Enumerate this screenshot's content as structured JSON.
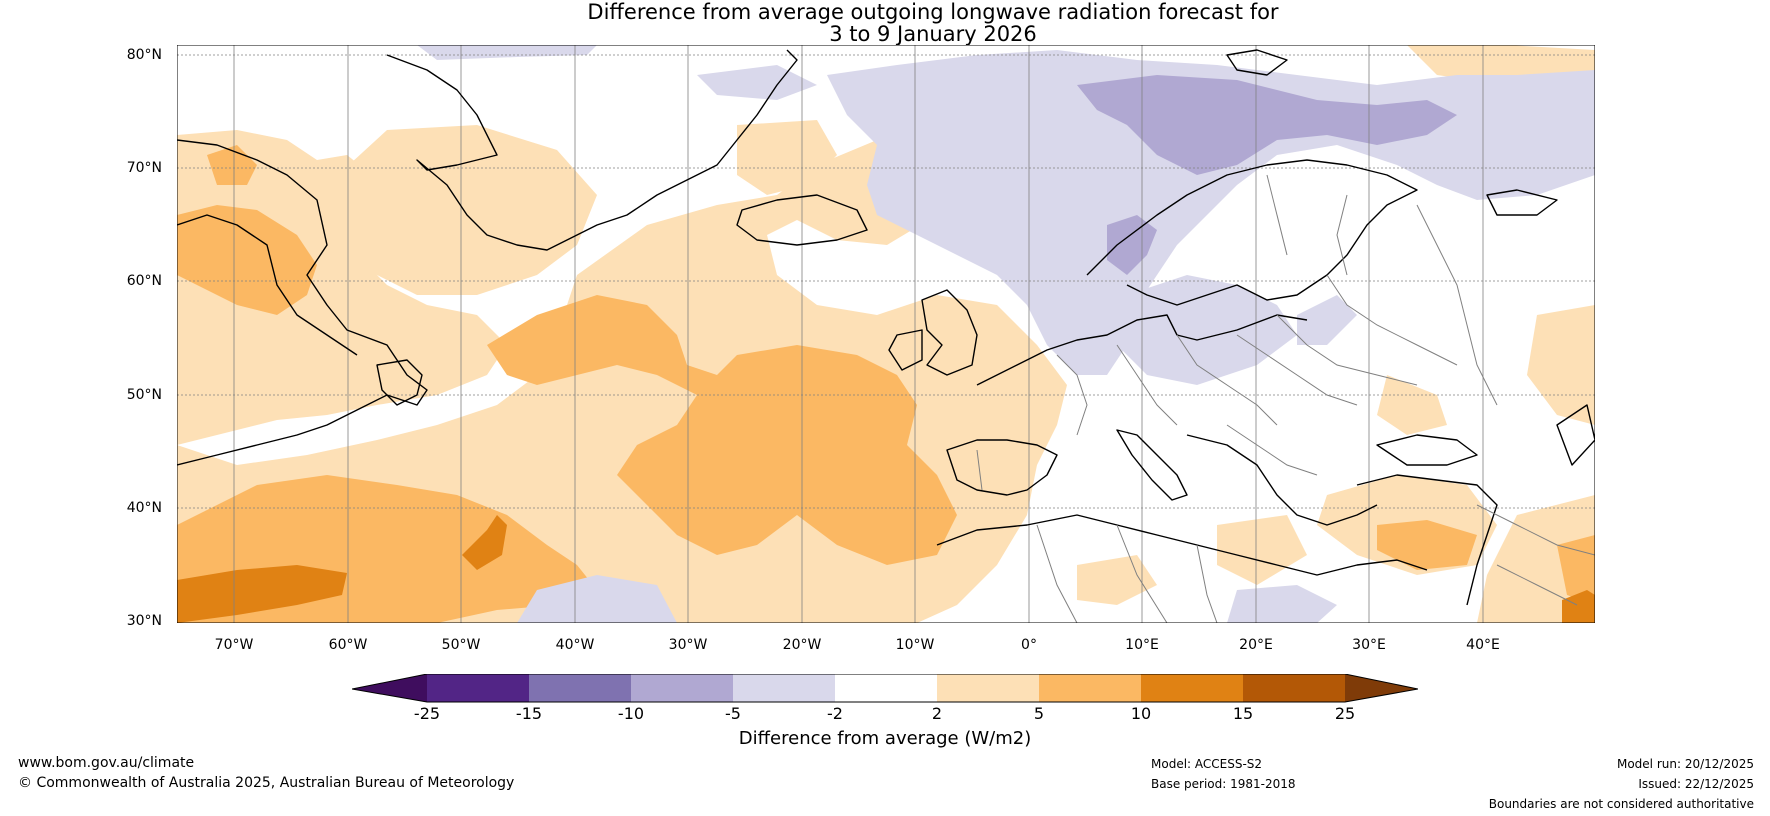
{
  "title": {
    "line1": "Difference from average outgoing longwave radiation forecast for",
    "line2": "3 to 9 January 2026"
  },
  "colors": {
    "n25": "#3f0d5e",
    "n15": "#522586",
    "n10": "#7f72b0",
    "n5": "#b0a8d2",
    "n2": "#d9d8eb",
    "zero": "#ffffff",
    "p2": "#fde0b6",
    "p5": "#fbb863",
    "p10": "#e08214",
    "p15": "#b35806",
    "p25": "#7f3b08",
    "ocean": "#ffffff",
    "coast": "#000000",
    "border": "#808080",
    "grid": "#808080"
  },
  "map": {
    "lat_labels": [
      "80°N",
      "70°N",
      "60°N",
      "50°N",
      "40°N",
      "30°N"
    ],
    "lon_labels": [
      "70°W",
      "60°W",
      "50°W",
      "40°W",
      "30°W",
      "20°W",
      "10°W",
      "0°",
      "10°E",
      "20°E",
      "30°E",
      "40°E"
    ]
  },
  "colorbar": {
    "ticks": [
      "-25",
      "-15",
      "-10",
      "-5",
      "-2",
      "2",
      "5",
      "10",
      "15",
      "25"
    ],
    "label": "Difference from average (W/m2)"
  },
  "footer": {
    "url": "www.bom.gov.au/climate",
    "copyright": "© Commonwealth of Australia 2025, Australian Bureau of Meteorology",
    "model": "Model: ACCESS-S2",
    "base_period": "Base period: 1981-2018",
    "model_run": "Model run: 20/12/2025",
    "issued": "Issued: 22/12/2025",
    "disclaimer": "Boundaries are not considered authoritative"
  }
}
